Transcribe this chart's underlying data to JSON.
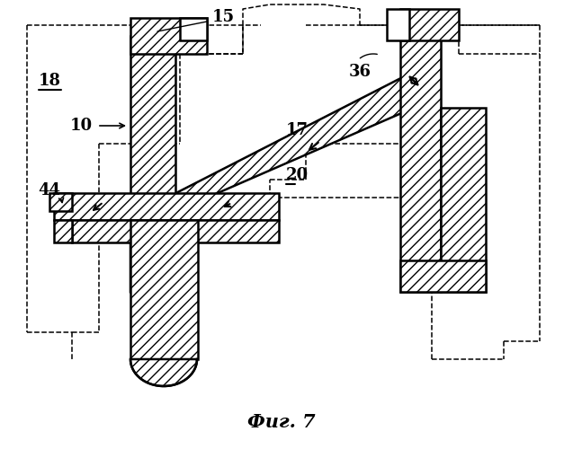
{
  "title": "Фиг. 7",
  "title_fontsize": 15,
  "title_fontweight": "bold",
  "bg_color": "#ffffff",
  "lw_main": 1.8,
  "lw_dash": 1.1
}
